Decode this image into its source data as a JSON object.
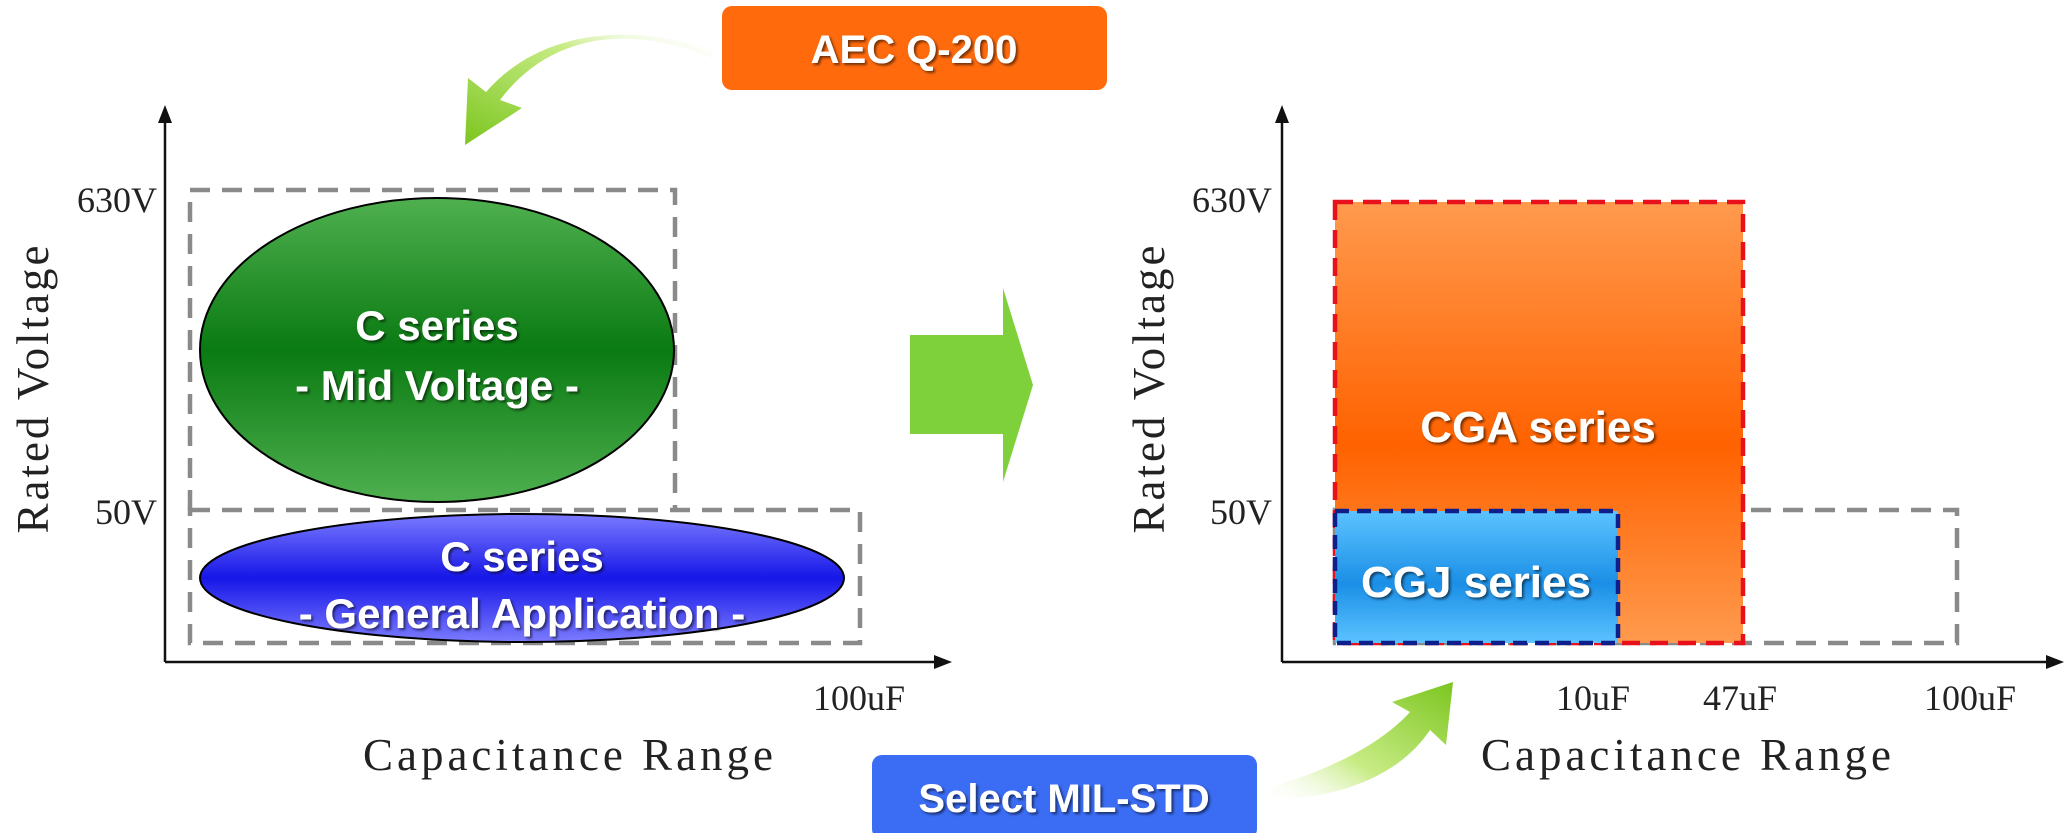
{
  "top_badge": {
    "label": "AEC Q-200",
    "color": "#ff6a0d"
  },
  "bottom_badge": {
    "label": "Select MIL-STD",
    "color": "#3a6cf4"
  },
  "left_chart": {
    "y_axis_label": "Rated Voltage",
    "x_axis_label": "Capacitance Range",
    "y_ticks": [
      "630V",
      "50V"
    ],
    "x_ticks": [
      "100uF"
    ],
    "mid_voltage": {
      "line1": "C series",
      "line2": "- Mid Voltage -",
      "color": "#1f8a1f"
    },
    "general": {
      "line1": "C series",
      "line2": "- General Application -",
      "color": "#2f2ff0"
    }
  },
  "right_chart": {
    "y_axis_label": "Rated Voltage",
    "x_axis_label": "Capacitance Range",
    "y_ticks": [
      "630V",
      "50V"
    ],
    "x_ticks": [
      "10uF",
      "47uF",
      "100uF"
    ],
    "cga": {
      "label": "CGA series",
      "color": "#ff6a0d"
    },
    "cgj": {
      "label": "CGJ series",
      "color": "#2a9ff0"
    }
  },
  "transition_arrow": {
    "color": "#7fd13b"
  }
}
